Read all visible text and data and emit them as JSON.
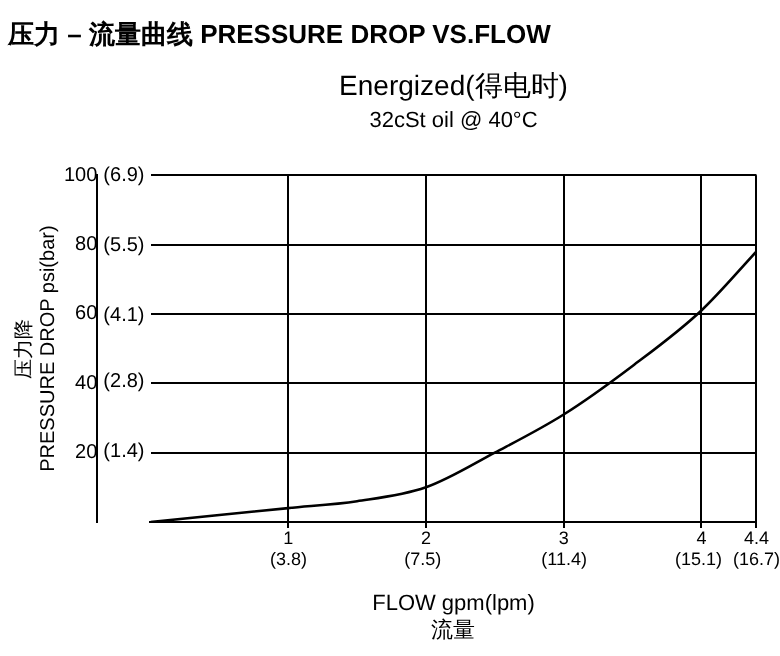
{
  "chart_data": {
    "type": "line",
    "title": "压力 – 流量曲线 PRESSURE DROP VS.FLOW",
    "subtitle": "Energized(得电时)",
    "annotations": [
      "32cSt oil @ 40°C"
    ],
    "xlabel": "FLOW gpm(lpm)\n流量",
    "ylabel": "压力降\nPRESSURE DROP psi(bar)",
    "series": [
      {
        "color": "#000000",
        "x": [
          0,
          0.5,
          1,
          1.5,
          2,
          2.5,
          3,
          3.5,
          4,
          4.4
        ],
        "values": [
          0,
          2,
          4,
          6,
          10,
          20,
          31,
          45,
          61,
          78
        ]
      }
    ],
    "xlim": [
      0,
      4.4
    ],
    "xticks": [
      1,
      2,
      3,
      4,
      4.4
    ],
    "x2lim": [
      0,
      16.7
    ],
    "x2ticks": [
      {
        "value": 3.8,
        "label": "(3.8)"
      },
      {
        "value": 7.5,
        "label": "(7.5)"
      },
      {
        "value": 11.4,
        "label": "(11.4)"
      },
      {
        "value": 15.1,
        "label": "(15.1)"
      },
      {
        "value": 16.7,
        "label": "(16.7)"
      }
    ],
    "ylim": [
      0,
      100
    ],
    "yticks": [
      20,
      40,
      60,
      80,
      100
    ],
    "y2lim": [
      0,
      6.9
    ],
    "y2ticks": [
      {
        "value": 1.4,
        "label": "(1.4)"
      },
      {
        "value": 2.8,
        "label": "(2.8)"
      },
      {
        "value": 4.1,
        "label": "(4.1)"
      },
      {
        "value": 5.5,
        "label": "(5.5)"
      },
      {
        "value": 6.9,
        "label": "(6.9)"
      }
    ],
    "grid": true,
    "marker": "none",
    "line_style": "solid"
  }
}
